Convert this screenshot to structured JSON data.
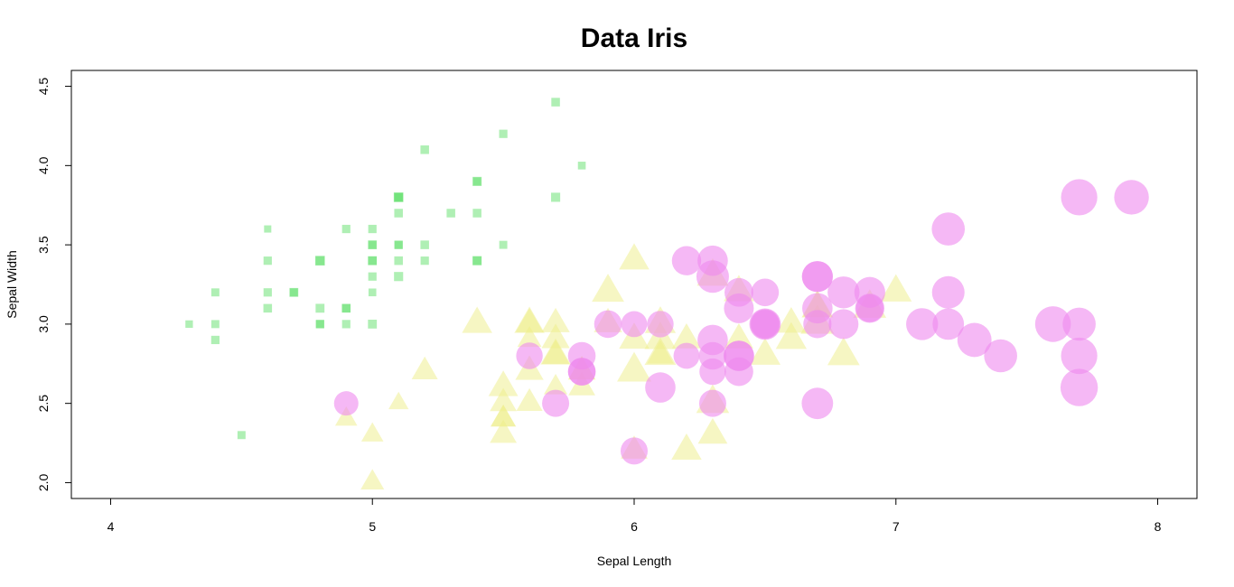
{
  "chart_data": {
    "type": "scatter",
    "title": "Data Iris",
    "xlabel": "Sepal Length",
    "ylabel": "Sepal Width",
    "xlim": [
      3.85,
      8.15
    ],
    "ylim": [
      1.9,
      4.6
    ],
    "x_ticks": [
      {
        "value": 4,
        "label": "4"
      },
      {
        "value": 5,
        "label": "5"
      },
      {
        "value": 6,
        "label": "6"
      },
      {
        "value": 7,
        "label": "7"
      },
      {
        "value": 8,
        "label": "8"
      }
    ],
    "y_ticks": [
      {
        "value": 2.0,
        "label": "2.0"
      },
      {
        "value": 2.5,
        "label": "2.5"
      },
      {
        "value": 3.0,
        "label": "3.0"
      },
      {
        "value": 3.5,
        "label": "3.5"
      },
      {
        "value": 4.0,
        "label": "4.0"
      },
      {
        "value": 4.5,
        "label": "4.5"
      }
    ],
    "grid": false,
    "legend": "none",
    "series": [
      {
        "marker": "square",
        "color": "#5fe06a",
        "x": [
          5.1,
          4.9,
          4.7,
          4.6,
          5.0,
          5.4,
          4.6,
          5.0,
          4.4,
          4.9,
          5.4,
          4.8,
          4.8,
          4.3,
          5.8,
          5.7,
          5.4,
          5.1,
          5.7,
          5.1,
          5.4,
          5.1,
          4.6,
          5.1,
          4.8,
          5.0,
          5.0,
          5.2,
          5.2,
          4.7,
          4.8,
          5.4,
          5.2,
          5.5,
          4.9,
          5.0,
          5.5,
          4.9,
          4.4,
          5.1,
          5.0,
          4.5,
          4.4,
          5.0,
          5.1,
          4.8,
          5.1,
          4.6,
          5.3,
          5.0
        ],
        "y": [
          3.5,
          3.0,
          3.2,
          3.1,
          3.6,
          3.9,
          3.4,
          3.4,
          2.9,
          3.1,
          3.7,
          3.4,
          3.0,
          3.0,
          4.0,
          4.4,
          3.9,
          3.5,
          3.8,
          3.8,
          3.4,
          3.7,
          3.6,
          3.3,
          3.4,
          3.0,
          3.4,
          3.5,
          3.4,
          3.2,
          3.1,
          3.4,
          4.1,
          4.2,
          3.1,
          3.2,
          3.5,
          3.6,
          3.0,
          3.4,
          3.5,
          2.3,
          3.2,
          3.5,
          3.8,
          3.0,
          3.8,
          3.2,
          3.7,
          3.3
        ],
        "size": [
          1.4,
          1.4,
          1.3,
          1.5,
          1.4,
          1.7,
          1.4,
          1.5,
          1.4,
          1.5,
          1.5,
          1.6,
          1.4,
          1.1,
          1.2,
          1.5,
          1.3,
          1.4,
          1.7,
          1.5,
          1.7,
          1.5,
          1.0,
          1.7,
          1.9,
          1.6,
          1.6,
          1.5,
          1.4,
          1.6,
          1.6,
          1.5,
          1.5,
          1.4,
          1.5,
          1.2,
          1.3,
          1.4,
          1.3,
          1.5,
          1.3,
          1.3,
          1.3,
          1.6,
          1.9,
          1.4,
          1.6,
          1.4,
          1.5,
          1.4
        ]
      },
      {
        "marker": "triangle",
        "color": "#eeee88",
        "x": [
          7.0,
          6.4,
          6.9,
          5.5,
          6.5,
          5.7,
          6.3,
          4.9,
          6.6,
          5.2,
          5.0,
          5.9,
          6.0,
          6.1,
          5.6,
          6.7,
          5.6,
          5.8,
          6.2,
          5.6,
          5.9,
          6.1,
          6.3,
          6.1,
          6.4,
          6.6,
          6.8,
          6.7,
          6.0,
          5.7,
          5.5,
          5.5,
          5.8,
          6.0,
          5.4,
          6.0,
          6.7,
          6.3,
          5.6,
          5.5,
          5.5,
          6.1,
          5.8,
          5.0,
          5.6,
          5.7,
          5.7,
          6.2,
          5.1,
          5.7
        ],
        "y": [
          3.2,
          3.2,
          3.1,
          2.3,
          2.8,
          2.8,
          3.3,
          2.4,
          2.9,
          2.7,
          2.0,
          3.0,
          2.2,
          2.9,
          2.9,
          3.1,
          3.0,
          2.7,
          2.2,
          2.5,
          3.2,
          2.8,
          2.5,
          2.8,
          2.9,
          3.0,
          2.8,
          3.0,
          2.9,
          2.6,
          2.4,
          2.4,
          2.7,
          2.7,
          3.0,
          3.4,
          3.1,
          2.3,
          3.0,
          2.5,
          2.6,
          3.0,
          2.6,
          2.3,
          2.7,
          3.0,
          2.9,
          2.9,
          2.5,
          2.8
        ],
        "size": [
          4.7,
          4.5,
          4.9,
          4.0,
          4.6,
          4.5,
          4.7,
          3.3,
          4.6,
          3.9,
          3.5,
          4.2,
          4.0,
          4.7,
          3.6,
          4.4,
          4.5,
          4.1,
          4.5,
          3.9,
          4.8,
          4.0,
          4.9,
          4.7,
          4.3,
          4.4,
          4.8,
          5.0,
          4.5,
          3.5,
          3.8,
          3.7,
          3.9,
          5.1,
          4.5,
          4.5,
          4.7,
          4.4,
          4.1,
          4.0,
          4.4,
          4.6,
          4.0,
          3.3,
          4.2,
          4.2,
          4.2,
          4.3,
          3.0,
          4.1
        ]
      },
      {
        "marker": "circle",
        "color": "#ee88ee",
        "x": [
          6.3,
          5.8,
          7.1,
          6.3,
          6.5,
          7.6,
          4.9,
          7.3,
          6.7,
          7.2,
          6.5,
          6.4,
          6.8,
          5.7,
          5.8,
          6.4,
          6.5,
          7.7,
          7.7,
          6.0,
          6.9,
          5.6,
          7.7,
          6.3,
          6.7,
          7.2,
          6.2,
          6.1,
          6.4,
          7.2,
          7.4,
          7.9,
          6.4,
          6.3,
          6.1,
          7.7,
          6.3,
          6.4,
          6.0,
          6.9,
          6.7,
          6.9,
          5.8,
          6.8,
          6.7,
          6.7,
          6.3,
          6.5,
          6.2,
          5.9
        ],
        "y": [
          3.3,
          2.7,
          3.0,
          2.9,
          3.0,
          3.0,
          2.5,
          2.9,
          2.5,
          3.6,
          3.2,
          2.7,
          3.0,
          2.5,
          2.8,
          3.2,
          3.0,
          3.8,
          2.6,
          2.2,
          3.2,
          2.8,
          2.8,
          2.7,
          3.3,
          3.2,
          2.8,
          3.0,
          2.8,
          3.0,
          2.8,
          3.8,
          2.8,
          2.8,
          2.6,
          3.0,
          3.4,
          3.1,
          3.0,
          3.1,
          3.1,
          3.1,
          2.7,
          3.2,
          3.3,
          3.0,
          2.5,
          3.0,
          3.4,
          3.0
        ],
        "size": [
          6.0,
          5.1,
          5.9,
          5.6,
          5.8,
          6.6,
          4.5,
          6.3,
          5.8,
          6.1,
          5.1,
          5.3,
          5.5,
          5.0,
          5.1,
          5.3,
          5.5,
          6.7,
          6.9,
          5.0,
          5.7,
          4.9,
          6.7,
          4.9,
          5.7,
          6.0,
          4.8,
          4.9,
          5.6,
          5.8,
          6.1,
          6.4,
          5.6,
          5.1,
          5.6,
          6.1,
          5.6,
          5.5,
          4.8,
          5.4,
          5.6,
          5.1,
          5.1,
          5.9,
          5.7,
          5.2,
          5.0,
          5.2,
          5.4,
          5.1
        ]
      }
    ]
  }
}
